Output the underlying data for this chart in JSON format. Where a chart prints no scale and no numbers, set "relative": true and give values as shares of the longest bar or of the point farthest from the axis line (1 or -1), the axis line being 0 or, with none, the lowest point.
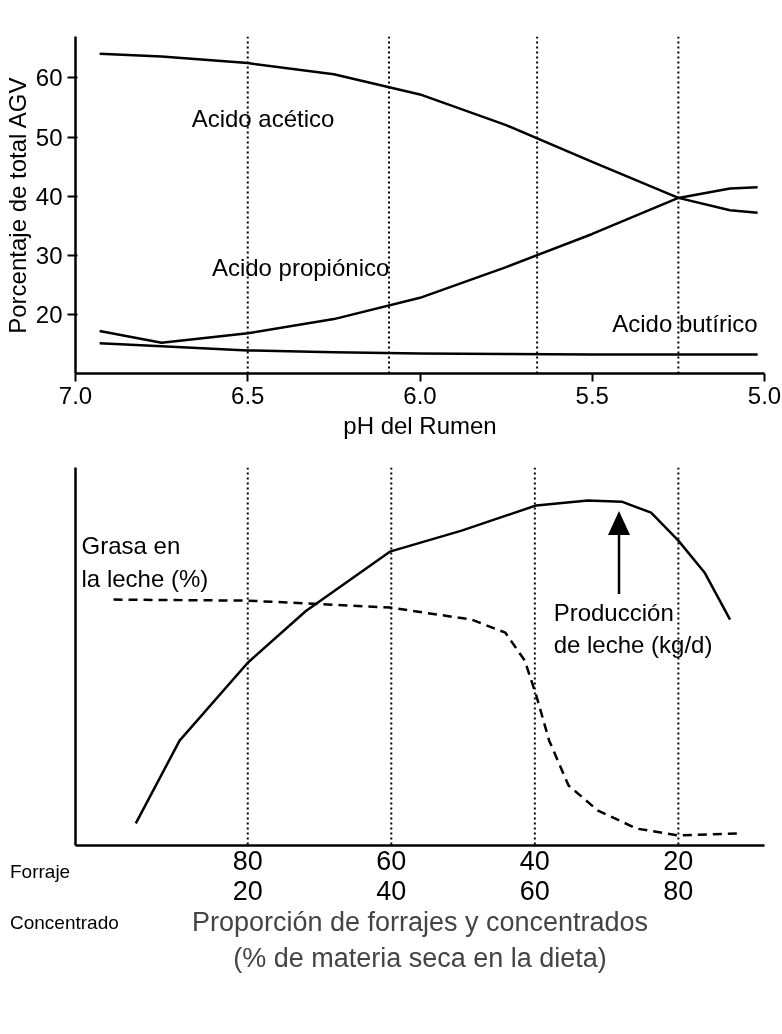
{
  "chart_data": [
    {
      "type": "line",
      "xlabel": "pH del Rumen",
      "ylabel": "Porcentaje de total AGV",
      "x": [
        6.93,
        6.75,
        6.5,
        6.25,
        6.0,
        5.75,
        5.5,
        5.25,
        5.1,
        5.02
      ],
      "series": [
        {
          "name": "Acido acético",
          "color": "#000000",
          "values": [
            64.1,
            63.6,
            62.5,
            60.6,
            57.2,
            52,
            45.8,
            39.7,
            37.6,
            37.2
          ]
        },
        {
          "name": "Acido propiónico",
          "color": "#000000",
          "values": [
            17.2,
            15.2,
            16.8,
            19.2,
            22.8,
            28,
            33.6,
            39.7,
            41.3,
            41.5
          ]
        },
        {
          "name": "Acido butírico",
          "color": "#000000",
          "values": [
            15.1,
            14.6,
            13.9,
            13.6,
            13.4,
            13.3,
            13.2,
            13.2,
            13.2,
            13.2
          ]
        }
      ],
      "xlim": [
        7.0,
        5.0
      ],
      "xticks": [
        {
          "value": 7,
          "label": "7.0"
        },
        6.5,
        {
          "value": 6,
          "label": "6.0"
        },
        5.5,
        {
          "value": 5,
          "label": "5.0"
        }
      ],
      "ylim": [
        10,
        67
      ],
      "yticks": [
        20,
        30,
        40,
        50,
        60
      ],
      "ref_lines": [
        {
          "axis": "x",
          "value": 6.5,
          "color": "#000000",
          "line_style": "dotted"
        },
        {
          "axis": "x",
          "value": 6.09,
          "color": "#000000",
          "line_style": "dotted"
        },
        {
          "axis": "x",
          "value": 5.66,
          "color": "#000000",
          "line_style": "dotted"
        },
        {
          "axis": "x",
          "value": 5.25,
          "color": "#000000",
          "line_style": "dotted"
        }
      ],
      "grid": false,
      "line_style": "solid"
    },
    {
      "type": "line",
      "relative": true,
      "xlabel": "Proporción de forrajes y concentrados\n(% de materia seca en la dieta)",
      "series": [
        {
          "name": "Grasa en\nla leche (%)",
          "color": "#000000",
          "line_style": "dashed",
          "x": [
            98.7,
            80,
            60.2,
            48.8,
            44.1,
            41.4,
            39.8,
            38,
            35.3,
            31.2,
            25.8,
            20,
            11.6
          ],
          "values": [
            0.713,
            0.71,
            0.69,
            0.655,
            0.617,
            0.536,
            0.435,
            0.304,
            0.174,
            0.101,
            0.049,
            0.029,
            0.035
          ]
        },
        {
          "color": "#000000",
          "line_style": "solid",
          "x": [
            95.6,
            89.5,
            80,
            71.9,
            60.2,
            50.2,
            39.8,
            32.6,
            27.9,
            23.8,
            20,
            16.3,
            12.8
          ],
          "values": [
            0.064,
            0.304,
            0.53,
            0.68,
            0.852,
            0.913,
            0.986,
            1.0,
            0.997,
            0.965,
            0.884,
            0.79,
            0.655
          ]
        }
      ],
      "annotations": [
        "Producción\nde leche (kg/d)",
        "Forraje",
        "Concentrado"
      ],
      "xlim": [
        104,
        8
      ],
      "xticks": [
        80,
        60,
        40,
        20
      ],
      "x2lim": [
        -4,
        92
      ],
      "x2ticks": [
        20,
        40,
        60,
        80
      ],
      "tick_labels": "x",
      "ref_lines": [
        {
          "axis": "x",
          "value": 80,
          "color": "#000000",
          "line_style": "dotted"
        },
        {
          "axis": "x",
          "value": 60,
          "color": "#000000",
          "line_style": "dotted"
        },
        {
          "axis": "x",
          "value": 40,
          "color": "#000000",
          "line_style": "dotted"
        },
        {
          "axis": "x",
          "value": 20,
          "color": "#000000",
          "line_style": "dotted"
        }
      ],
      "grid": false
    }
  ]
}
